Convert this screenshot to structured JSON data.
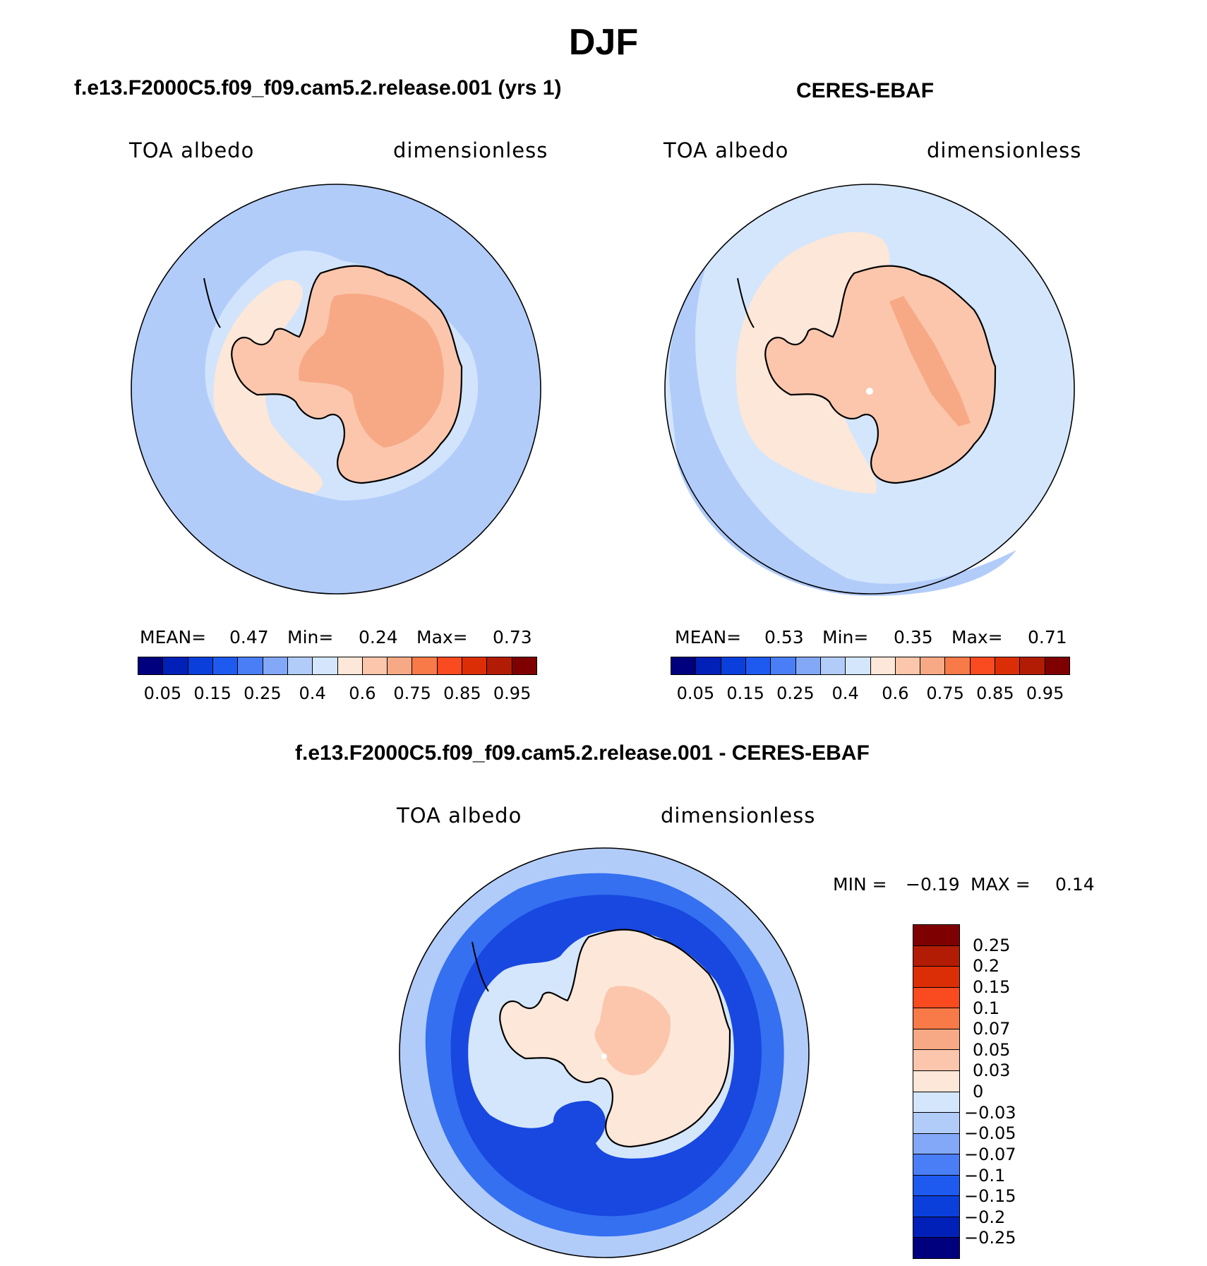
{
  "title": "DJF",
  "panels": [
    {
      "id": "model",
      "title": "f.e13.F2000C5.f09_f09.cam5.2.release.001 (yrs 1)",
      "variable": "TOA albedo",
      "units": "dimensionless",
      "stats": {
        "mean_label": "MEAN=",
        "mean": "0.47",
        "min_label": "Min=",
        "min": "0.24",
        "max_label": "Max=",
        "max": "0.73"
      },
      "colors": {
        "ocean": "#b2ccfa",
        "ring": "#d2e4fc",
        "sea_ice": "#fde7d8",
        "continent": "#fbc6ac",
        "interior": "#f7a985"
      }
    },
    {
      "id": "obs",
      "title": "CERES-EBAF",
      "variable": "TOA albedo",
      "units": "dimensionless",
      "stats": {
        "mean_label": "MEAN=",
        "mean": "0.53",
        "min_label": "Min=",
        "min": "0.35",
        "max_label": "Max=",
        "max": "0.71"
      },
      "colors": {
        "ocean": "#d4e6fc",
        "ring": "#b2ccfa",
        "sea_ice": "#fde7d8",
        "continent": "#fbc6ac",
        "interior": "#f7a985"
      }
    }
  ],
  "diff_panel": {
    "title": "f.e13.F2000C5.f09_f09.cam5.2.release.001 - CERES-EBAF",
    "variable": "TOA albedo",
    "units": "dimensionless",
    "stats": {
      "min_label": "MIN =",
      "min": "−0.19",
      "max_label": "MAX =",
      "max": "0.14"
    },
    "colors": {
      "outer": "#b2ccfa",
      "ocean": "#3470f0",
      "deep": "#1848e0",
      "ring": "#d4e6fc",
      "continent": "#fde7d8",
      "interior": "#fbc6ac"
    }
  },
  "colorbar": {
    "colors": [
      "#00007f",
      "#0020b8",
      "#0a3fdc",
      "#1f5af0",
      "#4a7ef6",
      "#83a8f8",
      "#b2ccfa",
      "#d4e6fc",
      "#fde7d8",
      "#fbc6ac",
      "#f7a985",
      "#f77a48",
      "#f94a20",
      "#dc2e06",
      "#b31c04",
      "#7f0000"
    ],
    "ticks": [
      "0.05",
      "0.15",
      "0.25",
      "0.4",
      "0.6",
      "0.75",
      "0.85",
      "0.95"
    ]
  },
  "diff_colorbar": {
    "colors": [
      "#7f0000",
      "#b31c04",
      "#dc2e06",
      "#f94a20",
      "#f77a48",
      "#f7a985",
      "#fbc6ac",
      "#fde7d8",
      "#d4e6fc",
      "#b2ccfa",
      "#83a8f8",
      "#4a7ef6",
      "#1f5af0",
      "#0a3fdc",
      "#0020b8",
      "#00007f"
    ],
    "ticks": [
      "0.25",
      "0.2",
      "0.15",
      "0.1",
      "0.07",
      "0.05",
      "0.03",
      "0",
      "−0.03",
      "−0.05",
      "−0.07",
      "−0.1",
      "−0.15",
      "−0.2",
      "−0.25"
    ]
  }
}
